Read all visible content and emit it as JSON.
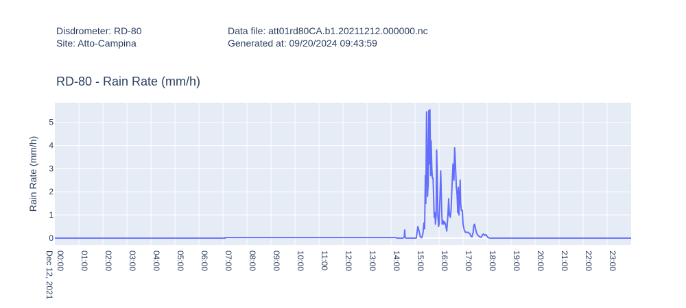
{
  "header": {
    "disdrometer": "Disdrometer: RD-80",
    "site": "Site: Atto-Campina",
    "data_file": "Data file: att01rd80CA.b1.20211212.000000.nc",
    "generated_at": "Generated at: 09/20/2024 09:43:59"
  },
  "colors": {
    "line": "#636efa",
    "plot_bg": "#e5ecf6",
    "grid": "#ffffff",
    "text": "#2a3f5f"
  },
  "chart_data": {
    "type": "line",
    "title": "RD-80 - Rain Rate (mm/h)",
    "xlabel": "",
    "ylabel": "Rain Rate (mm/h)",
    "xlim": [
      0,
      24
    ],
    "ylim": [
      -0.3,
      5.85
    ],
    "grid": true,
    "x_ticks": [
      {
        "value": 0,
        "label": "00:00",
        "sublabel": "Dec 12, 2021"
      },
      {
        "value": 1,
        "label": "01:00"
      },
      {
        "value": 2,
        "label": "02:00"
      },
      {
        "value": 3,
        "label": "03:00"
      },
      {
        "value": 4,
        "label": "04:00"
      },
      {
        "value": 5,
        "label": "05:00"
      },
      {
        "value": 6,
        "label": "06:00"
      },
      {
        "value": 7,
        "label": "07:00"
      },
      {
        "value": 8,
        "label": "08:00"
      },
      {
        "value": 9,
        "label": "09:00"
      },
      {
        "value": 10,
        "label": "10:00"
      },
      {
        "value": 11,
        "label": "11:00"
      },
      {
        "value": 12,
        "label": "12:00"
      },
      {
        "value": 13,
        "label": "13:00"
      },
      {
        "value": 14,
        "label": "14:00"
      },
      {
        "value": 15,
        "label": "15:00"
      },
      {
        "value": 16,
        "label": "16:00"
      },
      {
        "value": 17,
        "label": "17:00"
      },
      {
        "value": 18,
        "label": "18:00"
      },
      {
        "value": 19,
        "label": "19:00"
      },
      {
        "value": 20,
        "label": "20:00"
      },
      {
        "value": 21,
        "label": "21:00"
      },
      {
        "value": 22,
        "label": "22:00"
      },
      {
        "value": 23,
        "label": "23:00"
      }
    ],
    "y_ticks": [
      0,
      1,
      2,
      3,
      4,
      5
    ],
    "series": [
      {
        "points": [
          [
            0,
            0
          ],
          [
            7.1,
            0
          ],
          [
            7.1,
            0.02
          ],
          [
            14.2,
            0.02
          ],
          [
            14.25,
            0
          ],
          [
            14.5,
            0
          ],
          [
            14.55,
            0.05
          ],
          [
            14.57,
            0.35
          ],
          [
            14.59,
            0.02
          ],
          [
            14.62,
            0
          ],
          [
            15.05,
            0
          ],
          [
            15.12,
            0.5
          ],
          [
            15.18,
            0.25
          ],
          [
            15.22,
            0.05
          ],
          [
            15.28,
            0.02
          ],
          [
            15.33,
            0.2
          ],
          [
            15.37,
            0.65
          ],
          [
            15.4,
            0.4
          ],
          [
            15.43,
            2.7
          ],
          [
            15.45,
            1.5
          ],
          [
            15.48,
            5.45
          ],
          [
            15.5,
            3.9
          ],
          [
            15.52,
            1.8
          ],
          [
            15.55,
            2.4
          ],
          [
            15.57,
            5.5
          ],
          [
            15.6,
            3.2
          ],
          [
            15.62,
            5.55
          ],
          [
            15.65,
            2.7
          ],
          [
            15.67,
            4.2
          ],
          [
            15.7,
            3.0
          ],
          [
            15.72,
            2.6
          ],
          [
            15.75,
            2.6
          ],
          [
            15.78,
            1.6
          ],
          [
            15.8,
            0.9
          ],
          [
            15.83,
            1.1
          ],
          [
            15.85,
            0.6
          ],
          [
            15.88,
            1.0
          ],
          [
            15.9,
            3.8
          ],
          [
            15.93,
            2.6
          ],
          [
            15.95,
            1.0
          ],
          [
            15.98,
            0.5
          ],
          [
            16.0,
            0.6
          ],
          [
            16.03,
            1.5
          ],
          [
            16.07,
            2.9
          ],
          [
            16.1,
            1.6
          ],
          [
            16.13,
            0.6
          ],
          [
            16.17,
            0.75
          ],
          [
            16.2,
            0.6
          ],
          [
            16.23,
            0.7
          ],
          [
            16.27,
            0.6
          ],
          [
            16.32,
            0.3
          ],
          [
            16.37,
            1.0
          ],
          [
            16.4,
            1.7
          ],
          [
            16.43,
            1.0
          ],
          [
            16.47,
            0.9
          ],
          [
            16.5,
            1.2
          ],
          [
            16.55,
            2.5
          ],
          [
            16.58,
            3.2
          ],
          [
            16.62,
            2.5
          ],
          [
            16.65,
            3.9
          ],
          [
            16.68,
            3.3
          ],
          [
            16.72,
            2.2
          ],
          [
            16.75,
            1.9
          ],
          [
            16.78,
            1.1
          ],
          [
            16.8,
            2.2
          ],
          [
            16.83,
            1.0
          ],
          [
            16.85,
            1.6
          ],
          [
            16.88,
            2.5
          ],
          [
            16.9,
            1.5
          ],
          [
            16.93,
            1.2
          ],
          [
            16.97,
            1.2
          ],
          [
            17.0,
            0.6
          ],
          [
            17.05,
            0.35
          ],
          [
            17.1,
            0.25
          ],
          [
            17.2,
            0.25
          ],
          [
            17.28,
            0.2
          ],
          [
            17.33,
            0.08
          ],
          [
            17.37,
            0.05
          ],
          [
            17.42,
            0.25
          ],
          [
            17.45,
            0.55
          ],
          [
            17.48,
            0.6
          ],
          [
            17.52,
            0.4
          ],
          [
            17.57,
            0.2
          ],
          [
            17.62,
            0.12
          ],
          [
            17.7,
            0.05
          ],
          [
            17.75,
            0.03
          ],
          [
            17.8,
            0.12
          ],
          [
            17.85,
            0.18
          ],
          [
            17.9,
            0.12
          ],
          [
            17.95,
            0.15
          ],
          [
            18.0,
            0.08
          ],
          [
            18.05,
            0.02
          ],
          [
            18.1,
            0
          ],
          [
            24,
            0
          ]
        ]
      }
    ]
  }
}
